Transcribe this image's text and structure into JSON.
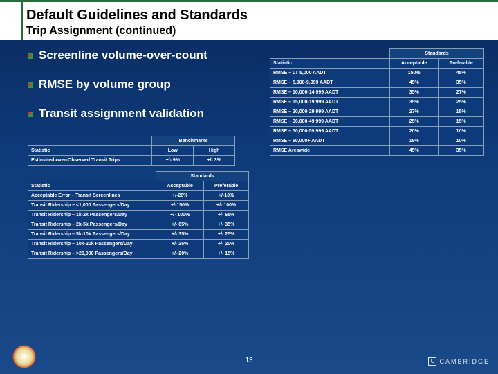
{
  "title": "Default Guidelines and Standards",
  "subtitle": "Trip Assignment (continued)",
  "bullets": [
    "Screenline volume-over-count",
    "RMSE by volume group",
    "Transit assignment validation"
  ],
  "benchmarks": {
    "header_group": "Benchmarks",
    "col_stat": "Statistic",
    "col_low": "Low",
    "col_high": "High",
    "rows": [
      {
        "stat": "Estimated-over-Observed Transit Trips",
        "low": "+/- 9%",
        "high": "+/- 3%"
      }
    ]
  },
  "standards_left": {
    "header_group": "Standards",
    "col_stat": "Statistic",
    "col_acc": "Acceptable",
    "col_pref": "Preferable",
    "rows": [
      {
        "stat": "Acceptable Error – Transit Screenlines",
        "acc": "+/-20%",
        "pref": "+/-10%"
      },
      {
        "stat": "Transit Ridership – <1,000 Passengers/Day",
        "acc": "+/-150%",
        "pref": "+/- 100%"
      },
      {
        "stat": "Transit Ridership – 1k-2k Passengers/Day",
        "acc": "+/- 100%",
        "pref": "+/- 65%"
      },
      {
        "stat": "Transit Ridership – 2k-5k Passengers/Day",
        "acc": "+/- 65%",
        "pref": "+/- 35%"
      },
      {
        "stat": "Transit Ridership – 5k-10k Passengers/Day",
        "acc": "+/- 35%",
        "pref": "+/- 25%"
      },
      {
        "stat": "Transit Ridership – 10k-20k Passengers/Day",
        "acc": "+/- 25%",
        "pref": "+/- 20%"
      },
      {
        "stat": "Transit Ridership – >20,000 Passengers/Day",
        "acc": "+/- 20%",
        "pref": "+/- 15%"
      }
    ]
  },
  "standards_right": {
    "header_group": "Standards",
    "col_stat": "Statistic",
    "col_acc": "Acceptable",
    "col_pref": "Preferable",
    "rows": [
      {
        "stat": "RMSE – LT 5,000 AADT",
        "acc": "150%",
        "pref": "45%"
      },
      {
        "stat": "RMSE – 5,000-9,999 AADT",
        "acc": "45%",
        "pref": "35%"
      },
      {
        "stat": "RMSE – 10,000-14,999 AADT",
        "acc": "35%",
        "pref": "27%"
      },
      {
        "stat": "RMSE – 15,000-19,999 AADT",
        "acc": "35%",
        "pref": "25%"
      },
      {
        "stat": "RMSE – 20,000-29,999 AADT",
        "acc": "27%",
        "pref": "15%"
      },
      {
        "stat": "RMSE – 30,000-49,999 AADT",
        "acc": "25%",
        "pref": "15%"
      },
      {
        "stat": "RMSE – 50,000-59,999 AADT",
        "acc": "20%",
        "pref": "10%"
      },
      {
        "stat": "RMSE – 60,000+ AADT",
        "acc": "19%",
        "pref": "10%"
      },
      {
        "stat": "RMSE Areawide",
        "acc": "45%",
        "pref": "35%"
      }
    ]
  },
  "page_number": "13",
  "logo_text": "CAMBRIDGE",
  "logo_c": "C"
}
